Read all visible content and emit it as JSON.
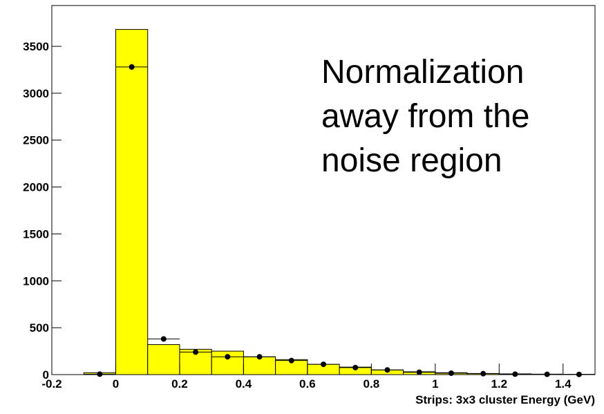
{
  "chart_data": {
    "type": "histogram",
    "annotation": [
      "Normalization",
      "away from the",
      "noise region"
    ],
    "x_label": "Strips: 3x3 cluster Energy (GeV)",
    "histogram": {
      "color": "#ffff00",
      "bins": [
        -0.1,
        0,
        0.1,
        0.2,
        0.3,
        0.4,
        0.5,
        0.6,
        0.7,
        0.8,
        0.9,
        1.0,
        1.1,
        1.2,
        1.3,
        1.4,
        1.5
      ],
      "counts": [
        20,
        3680,
        320,
        270,
        250,
        190,
        160,
        110,
        80,
        50,
        30,
        20,
        12,
        8,
        5,
        3
      ]
    },
    "points": {
      "color": "#000000",
      "x": [
        -0.05,
        0.05,
        0.15,
        0.25,
        0.35,
        0.45,
        0.55,
        0.65,
        0.75,
        0.85,
        0.95,
        1.05,
        1.15,
        1.25,
        1.35,
        1.45
      ],
      "values": [
        5,
        3280,
        380,
        240,
        190,
        190,
        150,
        110,
        75,
        50,
        25,
        15,
        10,
        5,
        3,
        2
      ],
      "errors": [
        3,
        30,
        12,
        10,
        9,
        9,
        8,
        7,
        6,
        5,
        4,
        3,
        3,
        2,
        2,
        1
      ]
    },
    "xlim": [
      -0.2,
      1.5
    ],
    "ylim": [
      0,
      3935
    ],
    "xticks": [
      -0.2,
      0,
      0.2,
      0.4,
      0.6,
      0.8,
      1,
      1.2,
      1.4
    ],
    "yticks": [
      0,
      500,
      1000,
      1500,
      2000,
      2500,
      3000,
      3500
    ]
  }
}
